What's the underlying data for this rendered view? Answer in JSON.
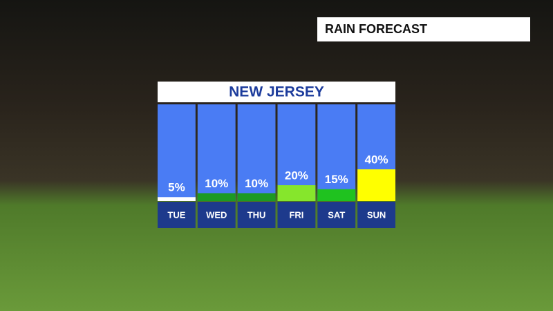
{
  "chart_data": {
    "type": "bar",
    "title": "NEW JERSEY",
    "annotations": [
      "RAIN FORECAST"
    ],
    "categories": [
      "TUE",
      "WED",
      "THU",
      "FRI",
      "SAT",
      "SUN"
    ],
    "values": [
      5,
      10,
      10,
      20,
      15,
      40
    ],
    "value_labels": [
      "5%",
      "10%",
      "10%",
      "20%",
      "15%",
      "40%"
    ],
    "colors": [
      "#ffffff",
      "#1c9a22",
      "#1c9a22",
      "#86e62c",
      "#1fc21f",
      "#ffff00"
    ]
  }
}
